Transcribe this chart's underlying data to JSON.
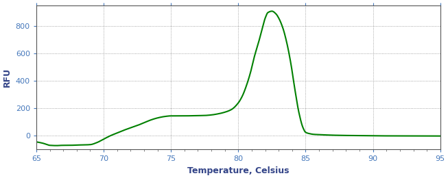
{
  "title": "",
  "xlabel": "Temperature, Celsius",
  "ylabel": "RFU",
  "xlim": [
    65,
    95
  ],
  "ylim": [
    -100,
    950
  ],
  "yticks": [
    0,
    200,
    400,
    600,
    800
  ],
  "xticks": [
    65,
    70,
    75,
    80,
    85,
    90,
    95
  ],
  "line_color": "#008000",
  "background_color": "#ffffff",
  "grid_color": "#808080",
  "line_width": 1.5,
  "figsize": [
    6.53,
    2.6
  ],
  "dpi": 100,
  "tick_label_color": "#4477bb",
  "axis_label_color": "#334488",
  "xlabel_fontsize": 9,
  "ylabel_fontsize": 9,
  "tick_fontsize": 8,
  "key_x": [
    65,
    65.5,
    66,
    66.5,
    67,
    67.5,
    68,
    68.5,
    69,
    69.5,
    70,
    70.5,
    71,
    71.5,
    72,
    72.5,
    73,
    73.5,
    74,
    74.5,
    75,
    75.5,
    76,
    76.5,
    77,
    77.5,
    78,
    78.5,
    79,
    79.5,
    80,
    80.3,
    80.6,
    80.9,
    81.2,
    81.5,
    81.8,
    82,
    82.2,
    82.5,
    82.8,
    83,
    83.3,
    83.6,
    83.9,
    84.2,
    84.5,
    84.8,
    85,
    85.3,
    85.6,
    86,
    87,
    88,
    89,
    90,
    91,
    92,
    93,
    94,
    95
  ],
  "key_y": [
    -45,
    -55,
    -70,
    -72,
    -70,
    -70,
    -68,
    -67,
    -65,
    -50,
    -25,
    0,
    20,
    40,
    58,
    75,
    95,
    115,
    130,
    140,
    145,
    145,
    145,
    146,
    147,
    148,
    152,
    160,
    172,
    192,
    240,
    290,
    365,
    460,
    580,
    680,
    790,
    860,
    900,
    910,
    890,
    860,
    790,
    680,
    530,
    340,
    170,
    60,
    25,
    15,
    10,
    8,
    4,
    2,
    1,
    0,
    -1,
    -1,
    -1,
    -2,
    -2
  ]
}
